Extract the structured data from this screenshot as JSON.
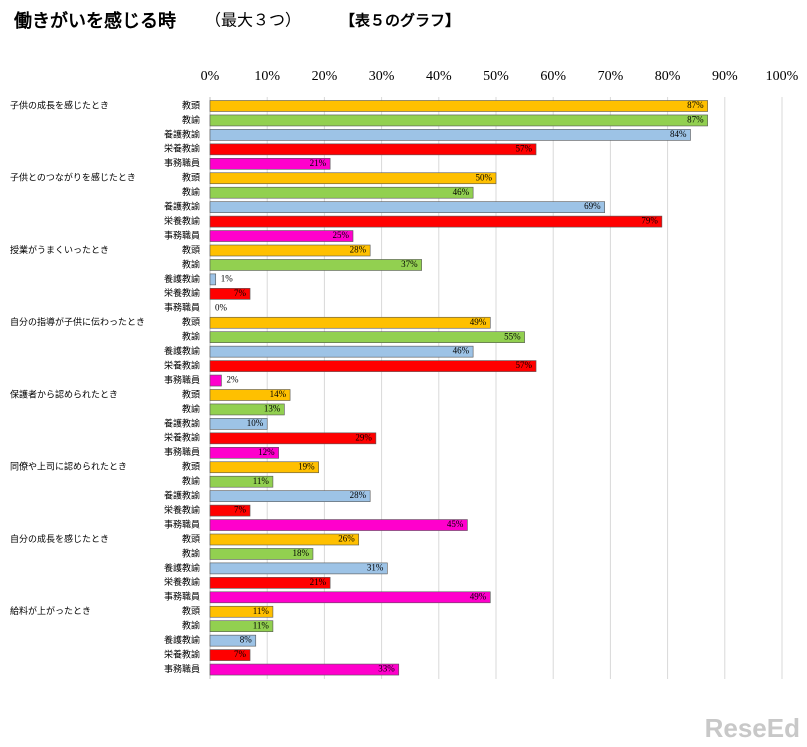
{
  "chart_data": {
    "type": "bar",
    "orientation": "horizontal",
    "title": "働きがいを感じる時",
    "subtitle": "（最大３つ）",
    "note": "【表５のグラフ】",
    "watermark": "ReseEd",
    "categories": [
      "子供の成長を感じたとき",
      "子供とのつながりを感じたとき",
      "授業がうまくいったとき",
      "自分の指導が子供に伝わったとき",
      "保護者から認められたとき",
      "同僚や上司に認められたとき",
      "自分の成長を感じたとき",
      "給料が上がったとき"
    ],
    "series": [
      {
        "name": "教頭",
        "color": "#FFC000",
        "values": [
          87,
          50,
          28,
          49,
          14,
          19,
          26,
          11
        ],
        "value_labels": [
          "87%",
          "50%",
          "28%",
          "49%",
          "14%",
          "19%",
          "26%",
          "11%"
        ]
      },
      {
        "name": "教諭",
        "color": "#92D050",
        "values": [
          87,
          46,
          37,
          55,
          13,
          11,
          18,
          11
        ],
        "value_labels": [
          "87%",
          "46%",
          "37%",
          "55%",
          "13%",
          "11%",
          "18%",
          "11%"
        ]
      },
      {
        "name": "養護教諭",
        "color": "#9DC3E6",
        "values": [
          84,
          69,
          1,
          46,
          10,
          28,
          31,
          8
        ],
        "value_labels": [
          "84%",
          "69%",
          "1%",
          "46%",
          "10%",
          "28%",
          "31%",
          "8%"
        ]
      },
      {
        "name": "栄養教諭",
        "color": "#FF0000",
        "values": [
          57,
          79,
          7,
          57,
          29,
          7,
          21,
          7
        ],
        "value_labels": [
          "57%",
          "79%",
          "7%",
          "57%",
          "29%",
          "7%",
          "21%",
          "7%"
        ]
      },
      {
        "name": "事務職員",
        "color": "#FF00CC",
        "values": [
          21,
          25,
          0,
          2,
          12,
          45,
          49,
          33
        ],
        "value_labels": [
          "21%",
          "25%",
          "0%",
          "2%",
          "12%",
          "45%",
          "49%",
          "33%"
        ]
      }
    ],
    "xlim": [
      0,
      100
    ],
    "xticks": [
      {
        "value": 0,
        "label": "0%"
      },
      {
        "value": 10,
        "label": "10%"
      },
      {
        "value": 20,
        "label": "20%"
      },
      {
        "value": 30,
        "label": "30%"
      },
      {
        "value": 40,
        "label": "40%"
      },
      {
        "value": 50,
        "label": "50%"
      },
      {
        "value": 60,
        "label": "60%"
      },
      {
        "value": 70,
        "label": "70%"
      },
      {
        "value": 80,
        "label": "80%"
      },
      {
        "value": 90,
        "label": "90%"
      },
      {
        "value": 100,
        "label": "100%"
      }
    ],
    "grid": true
  }
}
